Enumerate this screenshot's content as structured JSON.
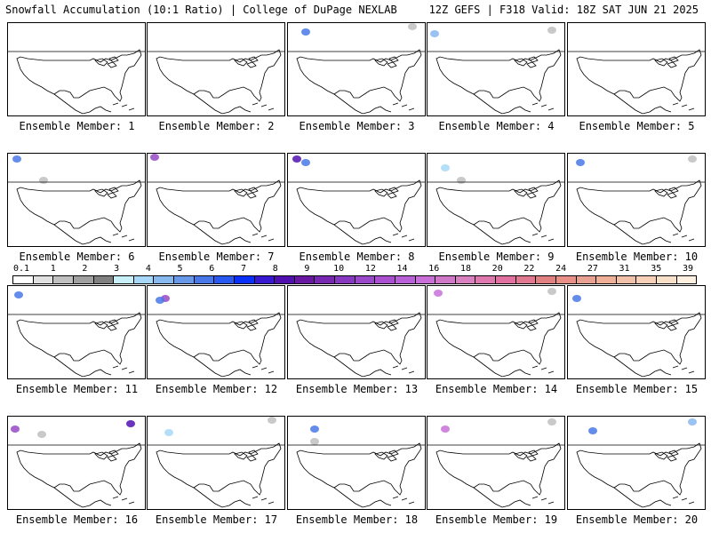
{
  "header": {
    "left": "Snowfall Accumulation (10:1 Ratio) | College of DuPage NEXLAB",
    "right": "12Z GEFS | F318 Valid: 18Z SAT JUN 21 2025"
  },
  "panels": [
    {
      "label": "Ensemble Member: 1"
    },
    {
      "label": "Ensemble Member: 2"
    },
    {
      "label": "Ensemble Member: 3"
    },
    {
      "label": "Ensemble Member: 4"
    },
    {
      "label": "Ensemble Member: 5"
    },
    {
      "label": "Ensemble Member: 6"
    },
    {
      "label": "Ensemble Member: 7"
    },
    {
      "label": "Ensemble Member: 8"
    },
    {
      "label": "Ensemble Member: 9"
    },
    {
      "label": "Ensemble Member: 10"
    },
    {
      "label": "Ensemble Member: 11"
    },
    {
      "label": "Ensemble Member: 12"
    },
    {
      "label": "Ensemble Member: 13"
    },
    {
      "label": "Ensemble Member: 14"
    },
    {
      "label": "Ensemble Member: 15"
    },
    {
      "label": "Ensemble Member: 16"
    },
    {
      "label": "Ensemble Member: 17"
    },
    {
      "label": "Ensemble Member: 18"
    },
    {
      "label": "Ensemble Member: 19"
    },
    {
      "label": "Ensemble Member: 20"
    }
  ],
  "colorbar": {
    "ticks": [
      "0.1",
      "1",
      "2",
      "3",
      "4",
      "5",
      "6",
      "7",
      "8",
      "9",
      "10",
      "12",
      "14",
      "16",
      "18",
      "20",
      "22",
      "24",
      "27",
      "31",
      "35",
      "39"
    ],
    "colors": [
      "#ffffff",
      "#e0e0e0",
      "#c0c0c0",
      "#a0a0a0",
      "#808080",
      "#c8f0f8",
      "#a8d8f8",
      "#88b8f0",
      "#6898e8",
      "#4878e8",
      "#2858f0",
      "#0830f8",
      "#3818d0",
      "#5010b0",
      "#6818a0",
      "#7828b0",
      "#8838c0",
      "#9848c8",
      "#a850d0",
      "#b860d8",
      "#c870d8",
      "#d078c8",
      "#d880c0",
      "#e078b0",
      "#e070a0",
      "#e07890",
      "#e08080",
      "#e89088",
      "#e8a090",
      "#f0b098",
      "#f0c0a8",
      "#f8d0b8",
      "#f8e0c8",
      "#fff0e0"
    ]
  }
}
